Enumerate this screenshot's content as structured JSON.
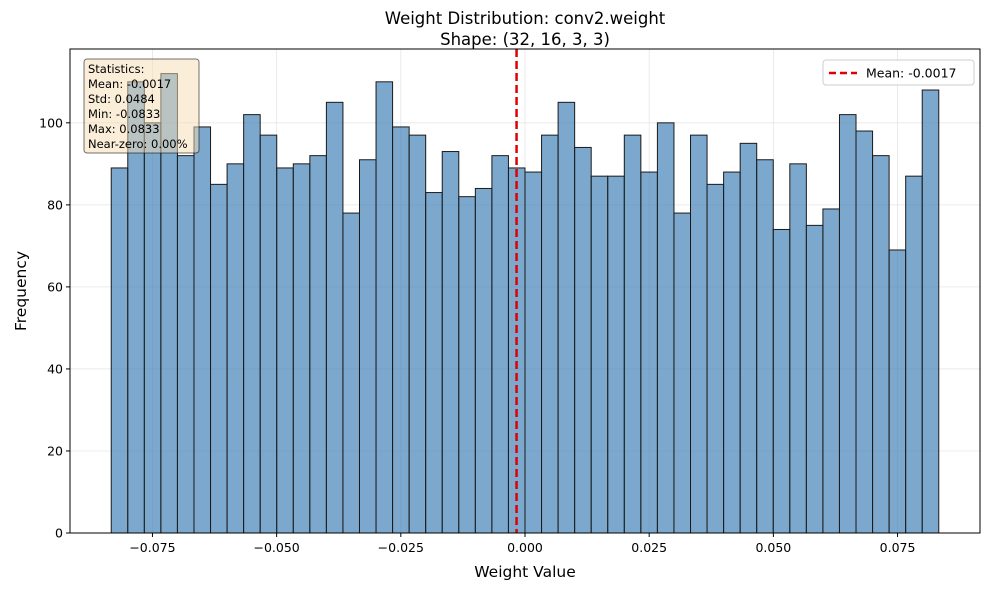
{
  "chart_data": {
    "type": "bar",
    "title": "Weight Distribution: conv2.weight",
    "subtitle": "Shape: (32, 16, 3, 3)",
    "xlabel": "Weight Value",
    "ylabel": "Frequency",
    "xlim": [
      -0.0916,
      0.0916
    ],
    "ylim": [
      0,
      118
    ],
    "x_ticks": [
      -0.075,
      -0.05,
      -0.025,
      0.0,
      0.025,
      0.05,
      0.075
    ],
    "x_tick_labels": [
      "−0.075",
      "−0.050",
      "−0.025",
      "0.000",
      "0.025",
      "0.050",
      "0.075"
    ],
    "y_ticks": [
      0,
      20,
      40,
      60,
      80,
      100
    ],
    "y_tick_labels": [
      "0",
      "20",
      "40",
      "60",
      "80",
      "100"
    ],
    "grid": true,
    "bin_range": [
      -0.0833,
      0.0833
    ],
    "bin_count": 50,
    "counts": [
      89,
      110,
      100,
      112,
      92,
      99,
      85,
      90,
      102,
      97,
      89,
      90,
      92,
      105,
      78,
      91,
      110,
      99,
      97,
      83,
      93,
      82,
      84,
      92,
      89,
      88,
      97,
      105,
      94,
      87,
      87,
      97,
      88,
      100,
      78,
      97,
      85,
      88,
      95,
      91,
      74,
      90,
      75,
      79,
      102,
      98,
      92,
      69,
      87,
      108
    ],
    "bar_color": "#4a86bb",
    "mean_line": {
      "value": -0.0017,
      "color": "#e00000",
      "style": "dashed"
    },
    "legend": {
      "position": "top-right",
      "entries": [
        "Mean: -0.0017"
      ]
    },
    "stats_box": {
      "position": "top-left",
      "lines": [
        "Statistics:",
        "Mean: -0.0017",
        "Std: 0.0484",
        "Min: -0.0833",
        "Max: 0.0833",
        "Near-zero: 0.00%"
      ],
      "background": "#f5deb3"
    }
  }
}
